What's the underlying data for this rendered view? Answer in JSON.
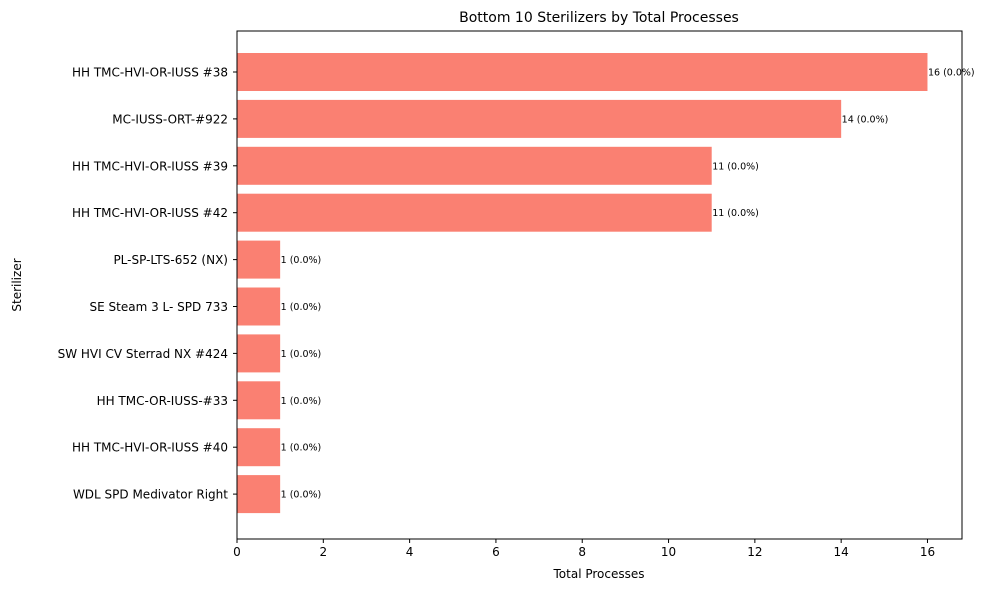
{
  "chart_data": {
    "type": "bar",
    "orientation": "horizontal",
    "title": "Bottom 10 Sterilizers by Total Processes",
    "xlabel": "Total Processes",
    "ylabel": "Sterilizer",
    "xlim": [
      0,
      16.8
    ],
    "xticks": [
      0,
      2,
      4,
      6,
      8,
      10,
      12,
      14,
      16
    ],
    "grid": false,
    "bar_color": "#FA8072",
    "categories": [
      "HH TMC-HVI-OR-IUSS #38",
      "MC-IUSS-ORT-#922",
      "HH TMC-HVI-OR-IUSS #39",
      "HH TMC-HVI-OR-IUSS #42",
      "PL-SP-LTS-652 (NX)",
      "SE Steam 3 L- SPD 733",
      "SW HVI CV Sterrad NX #424",
      "HH TMC-OR-IUSS-#33",
      "HH TMC-HVI-OR-IUSS #40",
      "WDL SPD Medivator Right"
    ],
    "values": [
      16,
      14,
      11,
      11,
      1,
      1,
      1,
      1,
      1,
      1
    ],
    "data_labels": [
      "16 (0.0%)",
      "14 (0.0%)",
      "11 (0.0%)",
      "11 (0.0%)",
      "1 (0.0%)",
      "1 (0.0%)",
      "1 (0.0%)",
      "1 (0.0%)",
      "1 (0.0%)",
      "1 (0.0%)"
    ]
  }
}
